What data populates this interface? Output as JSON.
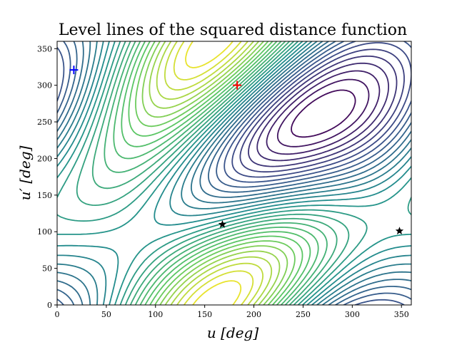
{
  "chart_data": {
    "type": "contour",
    "title": "Level lines of the squared distance function",
    "xlabel": "u [deg]",
    "ylabel": "u′ [deg]",
    "xlim": [
      0,
      360
    ],
    "ylim": [
      0,
      360
    ],
    "x_ticks": [
      0,
      50,
      100,
      150,
      200,
      250,
      300,
      350
    ],
    "y_ticks": [
      0,
      50,
      100,
      150,
      200,
      250,
      300,
      350
    ],
    "grid": false,
    "colormap": "viridis",
    "colormap_stops": [
      "#440154",
      "#3b528b",
      "#21908d",
      "#5dc863",
      "#fde725"
    ],
    "level_count": 30,
    "markers": [
      {
        "name": "global-max",
        "shape": "plus",
        "color": "#ff0000",
        "x": 183,
        "y": 300
      },
      {
        "name": "global-min",
        "shape": "plus",
        "color": "#0000ff",
        "x": 17,
        "y": 321
      },
      {
        "name": "saddle-1",
        "shape": "star",
        "color": "#000000",
        "x": 168,
        "y": 110
      },
      {
        "name": "saddle-2",
        "shape": "star",
        "color": "#000000",
        "x": 348,
        "y": 101
      }
    ]
  }
}
